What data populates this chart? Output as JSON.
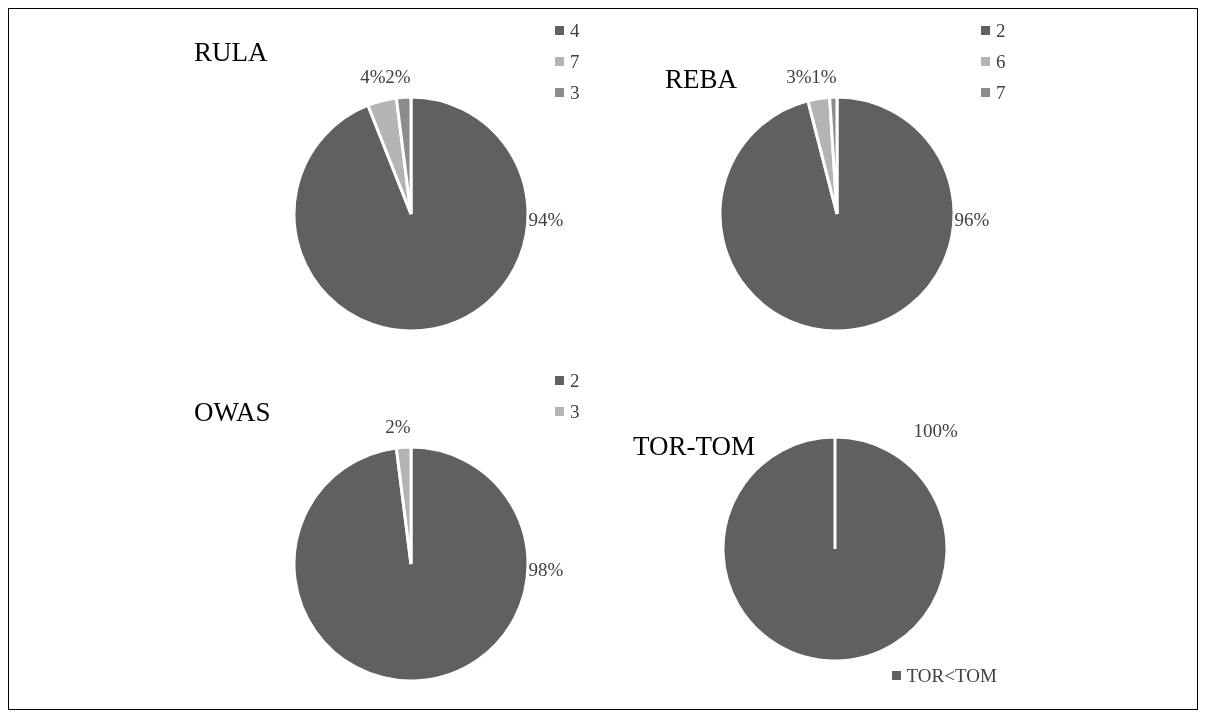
{
  "chart_data": [
    {
      "type": "pie",
      "title": "RULA",
      "categories": [
        "4",
        "7",
        "3"
      ],
      "values": [
        94,
        4,
        2
      ],
      "colors": [
        "#606060",
        "#b4b4b4",
        "#8c8c8c"
      ],
      "value_labels": [
        "94%",
        "4%",
        "2%"
      ],
      "legend": "top right"
    },
    {
      "type": "pie",
      "title": "REBA",
      "categories": [
        "2",
        "6",
        "7"
      ],
      "values": [
        96,
        3,
        1
      ],
      "colors": [
        "#606060",
        "#b4b4b4",
        "#8c8c8c"
      ],
      "value_labels": [
        "96%",
        "3%",
        "1%"
      ],
      "legend": "top right"
    },
    {
      "type": "pie",
      "title": "OWAS",
      "categories": [
        "2",
        "3"
      ],
      "values": [
        98,
        2
      ],
      "colors": [
        "#606060",
        "#b4b4b4"
      ],
      "value_labels": [
        "98%",
        "2%"
      ],
      "legend": "top right"
    },
    {
      "type": "pie",
      "title": "TOR-TOM",
      "categories": [
        "TOR<TOM"
      ],
      "values": [
        100
      ],
      "colors": [
        "#606060"
      ],
      "value_labels": [
        "100%"
      ],
      "legend": "bottom"
    }
  ]
}
